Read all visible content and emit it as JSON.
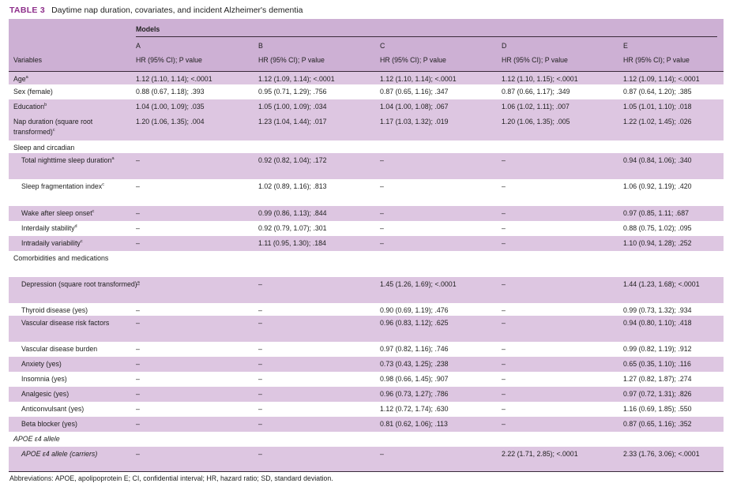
{
  "caption": {
    "label": "TABLE 3",
    "title": "Daytime nap duration, covariates, and incident Alzheimer's dementia"
  },
  "header": {
    "models_label": "Models",
    "variables_label": "Variables",
    "columns": [
      {
        "letter": "A",
        "stat": "HR (95% CI); P value"
      },
      {
        "letter": "B",
        "stat": "HR (95% CI); P value"
      },
      {
        "letter": "C",
        "stat": "HR (95% CI); P value"
      },
      {
        "letter": "D",
        "stat": "HR (95% CI); P value"
      },
      {
        "letter": "E",
        "stat": "HR (95% CI); P value"
      }
    ]
  },
  "rows": [
    {
      "label": "Age",
      "sup": "a",
      "indent": false,
      "cells": [
        "1.12 (1.10, 1.14); <.0001",
        "1.12 (1.09, 1.14); <.0001",
        "1.12 (1.10, 1.14); <.0001",
        "1.12 (1.10, 1.15); <.0001",
        "1.12 (1.09, 1.14); <.0001"
      ]
    },
    {
      "label": "Sex (female)",
      "sup": "",
      "indent": false,
      "cells": [
        "0.88 (0.67, 1.18); .393",
        "0.95 (0.71, 1.29); .756",
        "0.87 (0.65, 1.16); .347",
        "0.87 (0.66, 1.17); .349",
        "0.87 (0.64, 1.20); .385"
      ]
    },
    {
      "label": "Education",
      "sup": "b",
      "indent": false,
      "cells": [
        "1.04 (1.00, 1.09); .035",
        "1.05 (1.00, 1.09); .034",
        "1.04 (1.00, 1.08); .067",
        "1.06 (1.02, 1.11); .007",
        "1.05 (1.01, 1.10); .018"
      ]
    },
    {
      "label": "Nap duration (square root transformed)",
      "sup": "c",
      "indent": false,
      "cells": [
        "1.20 (1.06, 1.35); .004",
        "1.23 (1.04, 1.44); .017",
        "1.17 (1.03, 1.32); .019",
        "1.20 (1.06, 1.35); .005",
        "1.22 (1.02, 1.45); .026"
      ]
    },
    {
      "label": "Sleep and circadian",
      "sup": "",
      "indent": false,
      "section": true,
      "cells": [
        "",
        "",
        "",
        "",
        ""
      ]
    },
    {
      "label": "Total nighttime sleep duration",
      "sup": "a",
      "indent": true,
      "cells": [
        "–",
        "0.92 (0.82, 1.04); .172",
        "–",
        "–",
        "0.94 (0.84, 1.06); .340"
      ]
    },
    {
      "label": "Sleep fragmentation index",
      "sup": "c",
      "indent": true,
      "cells": [
        "–",
        "1.02 (0.89, 1.16); .813",
        "–",
        "–",
        "1.06 (0.92, 1.19); .420"
      ]
    },
    {
      "label": "Wake after sleep onset",
      "sup": "c",
      "indent": true,
      "cells": [
        "–",
        "0.99 (0.86, 1.13); .844",
        "–",
        "–",
        "0.97 (0.85, 1.11; .687"
      ]
    },
    {
      "label": "Interdaily stability",
      "sup": "d",
      "indent": true,
      "cells": [
        "–",
        "0.92 (0.79, 1.07); .301",
        "–",
        "–",
        "0.88 (0.75, 1.02); .095"
      ]
    },
    {
      "label": "Intradaily variability",
      "sup": "c",
      "indent": true,
      "cells": [
        "–",
        "1.11 (0.95, 1.30); .184",
        "–",
        "–",
        "1.10 (0.94, 1.28); .252"
      ]
    },
    {
      "label": "Comorbidities and medications",
      "sup": "",
      "indent": false,
      "section": true,
      "cells": [
        "",
        "",
        "",
        "",
        ""
      ]
    },
    {
      "label": "Depression (square root transformed)",
      "sup": "a",
      "indent": true,
      "cells": [
        "–",
        "–",
        "1.45 (1.26, 1.69); <.0001",
        "–",
        "1.44 (1.23, 1.68); <.0001"
      ]
    },
    {
      "label": "Thyroid disease (yes)",
      "sup": "",
      "indent": true,
      "cells": [
        "–",
        "–",
        "0.90 (0.69, 1.19); .476",
        "–",
        "0.99 (0.73, 1.32); .934"
      ]
    },
    {
      "label": "Vascular disease risk factors",
      "sup": "",
      "indent": true,
      "cells": [
        "–",
        "–",
        "0.96 (0.83, 1.12); .625",
        "–",
        "0.94 (0.80, 1.10); .418"
      ]
    },
    {
      "label": "Vascular disease burden",
      "sup": "",
      "indent": true,
      "cells": [
        "–",
        "–",
        "0.97 (0.82, 1.16); .746",
        "–",
        "0.99 (0.82, 1.19); .912"
      ]
    },
    {
      "label": "Anxiety (yes)",
      "sup": "",
      "indent": true,
      "cells": [
        "–",
        "–",
        "0.73 (0.43, 1.25); .238",
        "–",
        "0.65 (0.35, 1.10); .116"
      ]
    },
    {
      "label": "Insomnia (yes)",
      "sup": "",
      "indent": true,
      "cells": [
        "–",
        "–",
        "0.98 (0.66, 1.45); .907",
        "–",
        "1.27 (0.82, 1.87); .274"
      ]
    },
    {
      "label": "Analgesic (yes)",
      "sup": "",
      "indent": true,
      "cells": [
        "–",
        "–",
        "0.96 (0.73, 1.27); .786",
        "–",
        "0.97 (0.72, 1.31); .826"
      ]
    },
    {
      "label": "Anticonvulsant (yes)",
      "sup": "",
      "indent": true,
      "cells": [
        "–",
        "–",
        "1.12 (0.72, 1.74); .630",
        "–",
        "1.16 (0.69, 1.85); .550"
      ]
    },
    {
      "label": "Beta blocker (yes)",
      "sup": "",
      "indent": true,
      "cells": [
        "–",
        "–",
        "0.81 (0.62, 1.06); .113",
        "–",
        "0.87 (0.65, 1.16); .352"
      ]
    },
    {
      "label": "APOE ε4 allele",
      "sup": "",
      "indent": false,
      "section": true,
      "italic": true,
      "cells": [
        "",
        "",
        "",
        "",
        ""
      ]
    },
    {
      "label": "APOE ε4 allele (carriers)",
      "sup": "",
      "indent": true,
      "italic": true,
      "cells": [
        "–",
        "–",
        "–",
        "2.22 (1.71, 2.85); <.0001",
        "2.33 (1.76, 3.06); <.0001"
      ]
    }
  ],
  "footnote": "Abbreviations: APOE, apolipoprotein E; CI, confidential interval; HR, hazard ratio; SD, standard deviation.",
  "colors": {
    "caption_label": "#8e2f8b",
    "header_bg": "#cdb0d4",
    "band_bg": "#ddc6e1",
    "white_bg": "#ffffff"
  }
}
